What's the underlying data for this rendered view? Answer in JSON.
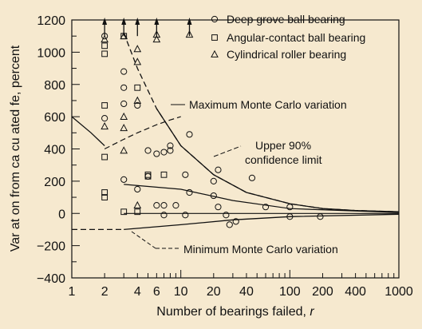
{
  "chart_data": {
    "type": "scatter",
    "xlabel": "Number of bearings failed, r",
    "xlabel_italic_part": "r",
    "ylabel": "Var at on from ca cu ated  fe, percent",
    "x_scale": "log",
    "xlim": [
      1,
      1000
    ],
    "ylim": [
      -400,
      1200
    ],
    "x_ticks": [
      1,
      2,
      4,
      6,
      10,
      20,
      40,
      100,
      200,
      400,
      1000
    ],
    "x_tick_labels": [
      "1",
      "2",
      "4",
      "6",
      "10",
      "20",
      "40",
      "100",
      "200",
      "400",
      "1000"
    ],
    "y_ticks": [
      -400,
      -200,
      0,
      200,
      400,
      600,
      800,
      1000,
      1200
    ],
    "y_tick_labels": [
      "−400",
      "−200",
      "0",
      "200",
      "400",
      "600",
      "800",
      "1000",
      "1200"
    ],
    "grid": false,
    "legend_position": "top-right",
    "series": [
      {
        "name": "Deep grove ball bearing",
        "marker": "circle",
        "points": [
          [
            2,
            590
          ],
          [
            2,
            1100
          ],
          [
            3,
            880
          ],
          [
            3,
            780
          ],
          [
            3,
            680
          ],
          [
            3,
            210
          ],
          [
            4,
            670
          ],
          [
            4,
            150
          ],
          [
            5,
            390
          ],
          [
            5,
            230
          ],
          [
            6,
            370
          ],
          [
            6,
            50
          ],
          [
            7,
            380
          ],
          [
            7,
            50
          ],
          [
            7,
            -10
          ],
          [
            8,
            420
          ],
          [
            8,
            390
          ],
          [
            9,
            50
          ],
          [
            11,
            240
          ],
          [
            11,
            -10
          ],
          [
            12,
            490
          ],
          [
            12,
            130
          ],
          [
            20,
            110
          ],
          [
            20,
            200
          ],
          [
            22,
            270
          ],
          [
            22,
            40
          ],
          [
            26,
            -10
          ],
          [
            28,
            -70
          ],
          [
            32,
            -50
          ],
          [
            45,
            220
          ],
          [
            60,
            40
          ],
          [
            100,
            40
          ],
          [
            100,
            -20
          ],
          [
            190,
            -20
          ]
        ]
      },
      {
        "name": "Angular-contact ball bearing",
        "marker": "square",
        "points": [
          [
            2,
            1040
          ],
          [
            2,
            990
          ],
          [
            2,
            670
          ],
          [
            2,
            350
          ],
          [
            2,
            130
          ],
          [
            2,
            100
          ],
          [
            3,
            1100
          ],
          [
            3,
            10
          ],
          [
            4,
            780
          ],
          [
            5,
            230
          ],
          [
            5,
            240
          ],
          [
            7,
            240
          ],
          [
            4,
            10
          ]
        ]
      },
      {
        "name": "Cylindrical roller bearing",
        "marker": "triangle",
        "points": [
          [
            2,
            1080
          ],
          [
            2,
            540
          ],
          [
            3,
            390
          ],
          [
            3,
            600
          ],
          [
            3,
            530
          ],
          [
            3,
            1100
          ],
          [
            4,
            1020
          ],
          [
            4,
            940
          ],
          [
            4,
            700
          ],
          [
            4,
            50
          ],
          [
            6,
            1080
          ],
          [
            6,
            1110
          ],
          [
            12,
            1110
          ]
        ]
      }
    ],
    "overflow_arrows_x": [
      2,
      3,
      4,
      6,
      12
    ],
    "curves": {
      "maximum_monte_carlo": [
        [
          3,
          1120
        ],
        [
          4,
          900
        ],
        [
          6,
          650
        ],
        [
          10,
          420
        ],
        [
          20,
          240
        ],
        [
          40,
          130
        ],
        [
          100,
          60
        ],
        [
          200,
          30
        ],
        [
          400,
          18
        ],
        [
          1000,
          10
        ]
      ],
      "upper_90_confidence": [
        [
          2,
          400
        ],
        [
          3,
          460
        ],
        [
          4,
          500
        ],
        [
          6,
          550
        ],
        [
          8,
          580
        ],
        [
          10,
          600
        ]
      ],
      "lower_left_curve": [
        [
          1,
          600
        ],
        [
          1.5,
          500
        ],
        [
          2,
          420
        ]
      ],
      "center_line": [
        [
          3,
          0
        ],
        [
          1000,
          0
        ]
      ],
      "upper_envelope_dashed_start": [
        [
          2,
          1110
        ],
        [
          3,
          1120
        ]
      ],
      "zero_band_upper": [
        [
          3,
          180
        ],
        [
          10,
          150
        ],
        [
          30,
          80
        ],
        [
          100,
          30
        ],
        [
          1000,
          5
        ]
      ],
      "minimum_monte_carlo": [
        [
          1,
          -100
        ],
        [
          3,
          -100
        ],
        [
          10,
          -70
        ],
        [
          30,
          -40
        ],
        [
          100,
          -20
        ],
        [
          1000,
          -5
        ]
      ],
      "minimum_dashed_start": [
        [
          1,
          -100
        ],
        [
          3,
          -100
        ]
      ]
    },
    "annotations": [
      {
        "text": "Maximum Monte Carlo variation"
      },
      {
        "text": "Upper 90%"
      },
      {
        "text": "confidence limit"
      },
      {
        "text": "Minimum Monte Carlo variation"
      }
    ]
  }
}
